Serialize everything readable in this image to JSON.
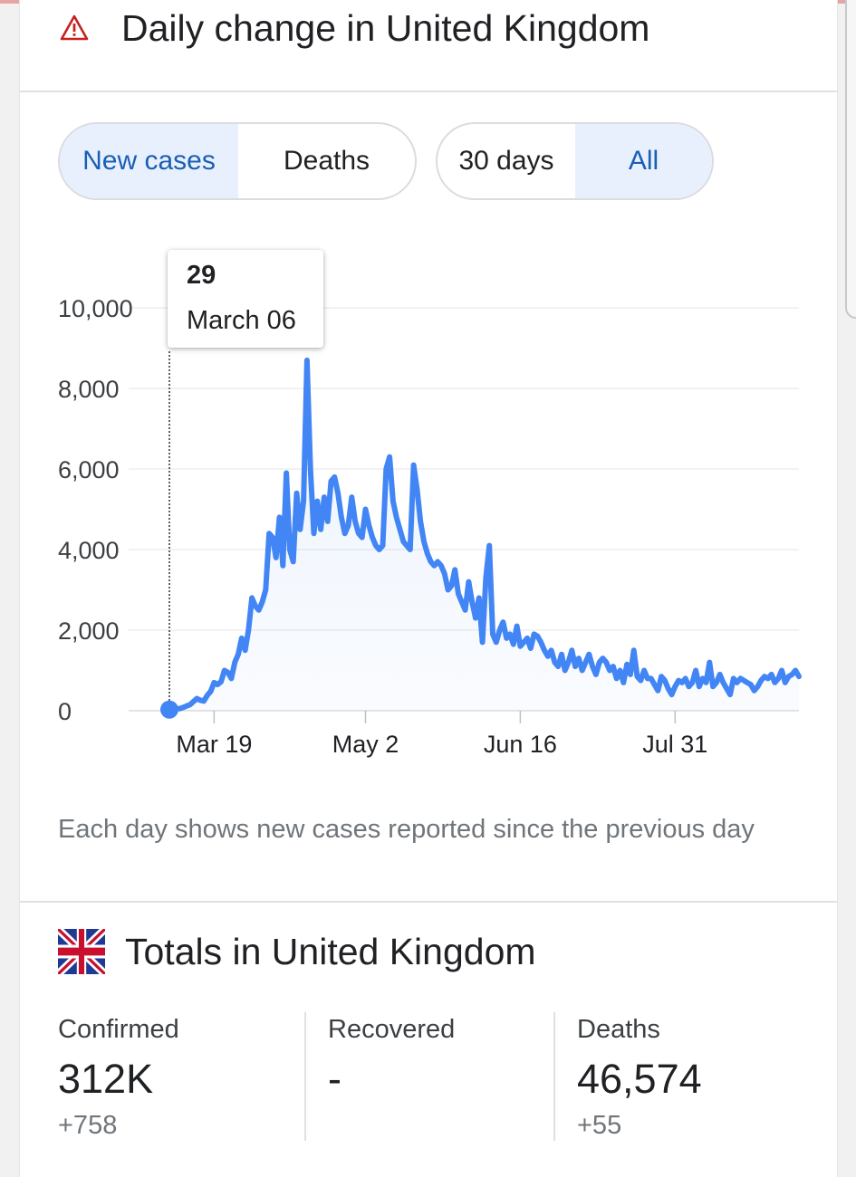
{
  "header": {
    "title": "Daily change in United Kingdom",
    "icon": "warning-triangle-icon",
    "icon_color": "#c5221f"
  },
  "metric_toggle": {
    "options": [
      "New cases",
      "Deaths"
    ],
    "selected": "New cases"
  },
  "range_toggle": {
    "options": [
      "30 days",
      "All"
    ],
    "selected": "All"
  },
  "tooltip": {
    "value": "29",
    "date": "March 06"
  },
  "chart_data": {
    "type": "area",
    "accent_color": "#4285f4",
    "title": "",
    "xlabel": "",
    "ylabel": "",
    "ylim": [
      0,
      10000
    ],
    "yticks": [
      "10,000",
      "8,000",
      "6,000",
      "4,000",
      "2,000",
      "0"
    ],
    "xticks": [
      "Mar 19",
      "May 2",
      "Jun 16",
      "Jul 31"
    ],
    "grid": true,
    "series": [
      {
        "values": [
          29,
          45,
          40,
          55,
          80,
          120,
          150,
          230,
          300,
          260,
          240,
          380,
          480,
          700,
          650,
          720,
          1000,
          950,
          800,
          1200,
          1400,
          1800,
          1500,
          2000,
          2800,
          2600,
          2500,
          2700,
          3000,
          4400,
          4300,
          3800,
          4800,
          3600,
          5900,
          4000,
          3700,
          5400,
          4500,
          5200,
          8700,
          6000,
          4400,
          5200,
          4500,
          5300,
          4700,
          5700,
          5800,
          5400,
          4800,
          4400,
          4600,
          5300,
          4700,
          4400,
          4300,
          5000,
          4600,
          4300,
          4100,
          4000,
          4100,
          6000,
          6300,
          5200,
          4800,
          4500,
          4200,
          4100,
          4000,
          6100,
          5500,
          4700,
          4200,
          3900,
          3700,
          3600,
          3700,
          3600,
          3400,
          3000,
          3100,
          3500,
          2900,
          2700,
          2500,
          3200,
          2700,
          2300,
          2800,
          1700,
          3300,
          4100,
          1900,
          1700,
          2000,
          2200,
          1800,
          1900,
          1650,
          2100,
          1600,
          1700,
          1800,
          1550,
          1900,
          1850,
          1700,
          1500,
          1350,
          1500,
          1200,
          1100,
          1400,
          1000,
          1200,
          1500,
          1100,
          1300,
          1000,
          1200,
          1400,
          1100,
          900,
          1200,
          1300,
          1200,
          1000,
          1100,
          800,
          1000,
          700,
          1150,
          900,
          1500,
          850,
          750,
          1000,
          800,
          800,
          650,
          500,
          850,
          750,
          550,
          400,
          600,
          750,
          700,
          800,
          600,
          700,
          1000,
          600,
          800,
          700,
          1200,
          600,
          700,
          900,
          700,
          550,
          400,
          800,
          700,
          800,
          750,
          700,
          650,
          500,
          600,
          750,
          850,
          800,
          900,
          700,
          800,
          1000,
          700,
          850,
          900,
          1000,
          850
        ],
        "start_date": "2020-03-06"
      }
    ]
  },
  "footnote": "Each day shows new cases reported since the previous day",
  "totals": {
    "title": "Totals in United Kingdom",
    "flag_icon": "uk-flag-icon",
    "stats": [
      {
        "label": "Confirmed",
        "value": "312K",
        "delta": "+758"
      },
      {
        "label": "Recovered",
        "value": "-",
        "delta": ""
      },
      {
        "label": "Deaths",
        "value": "46,574",
        "delta": "+55"
      }
    ]
  }
}
